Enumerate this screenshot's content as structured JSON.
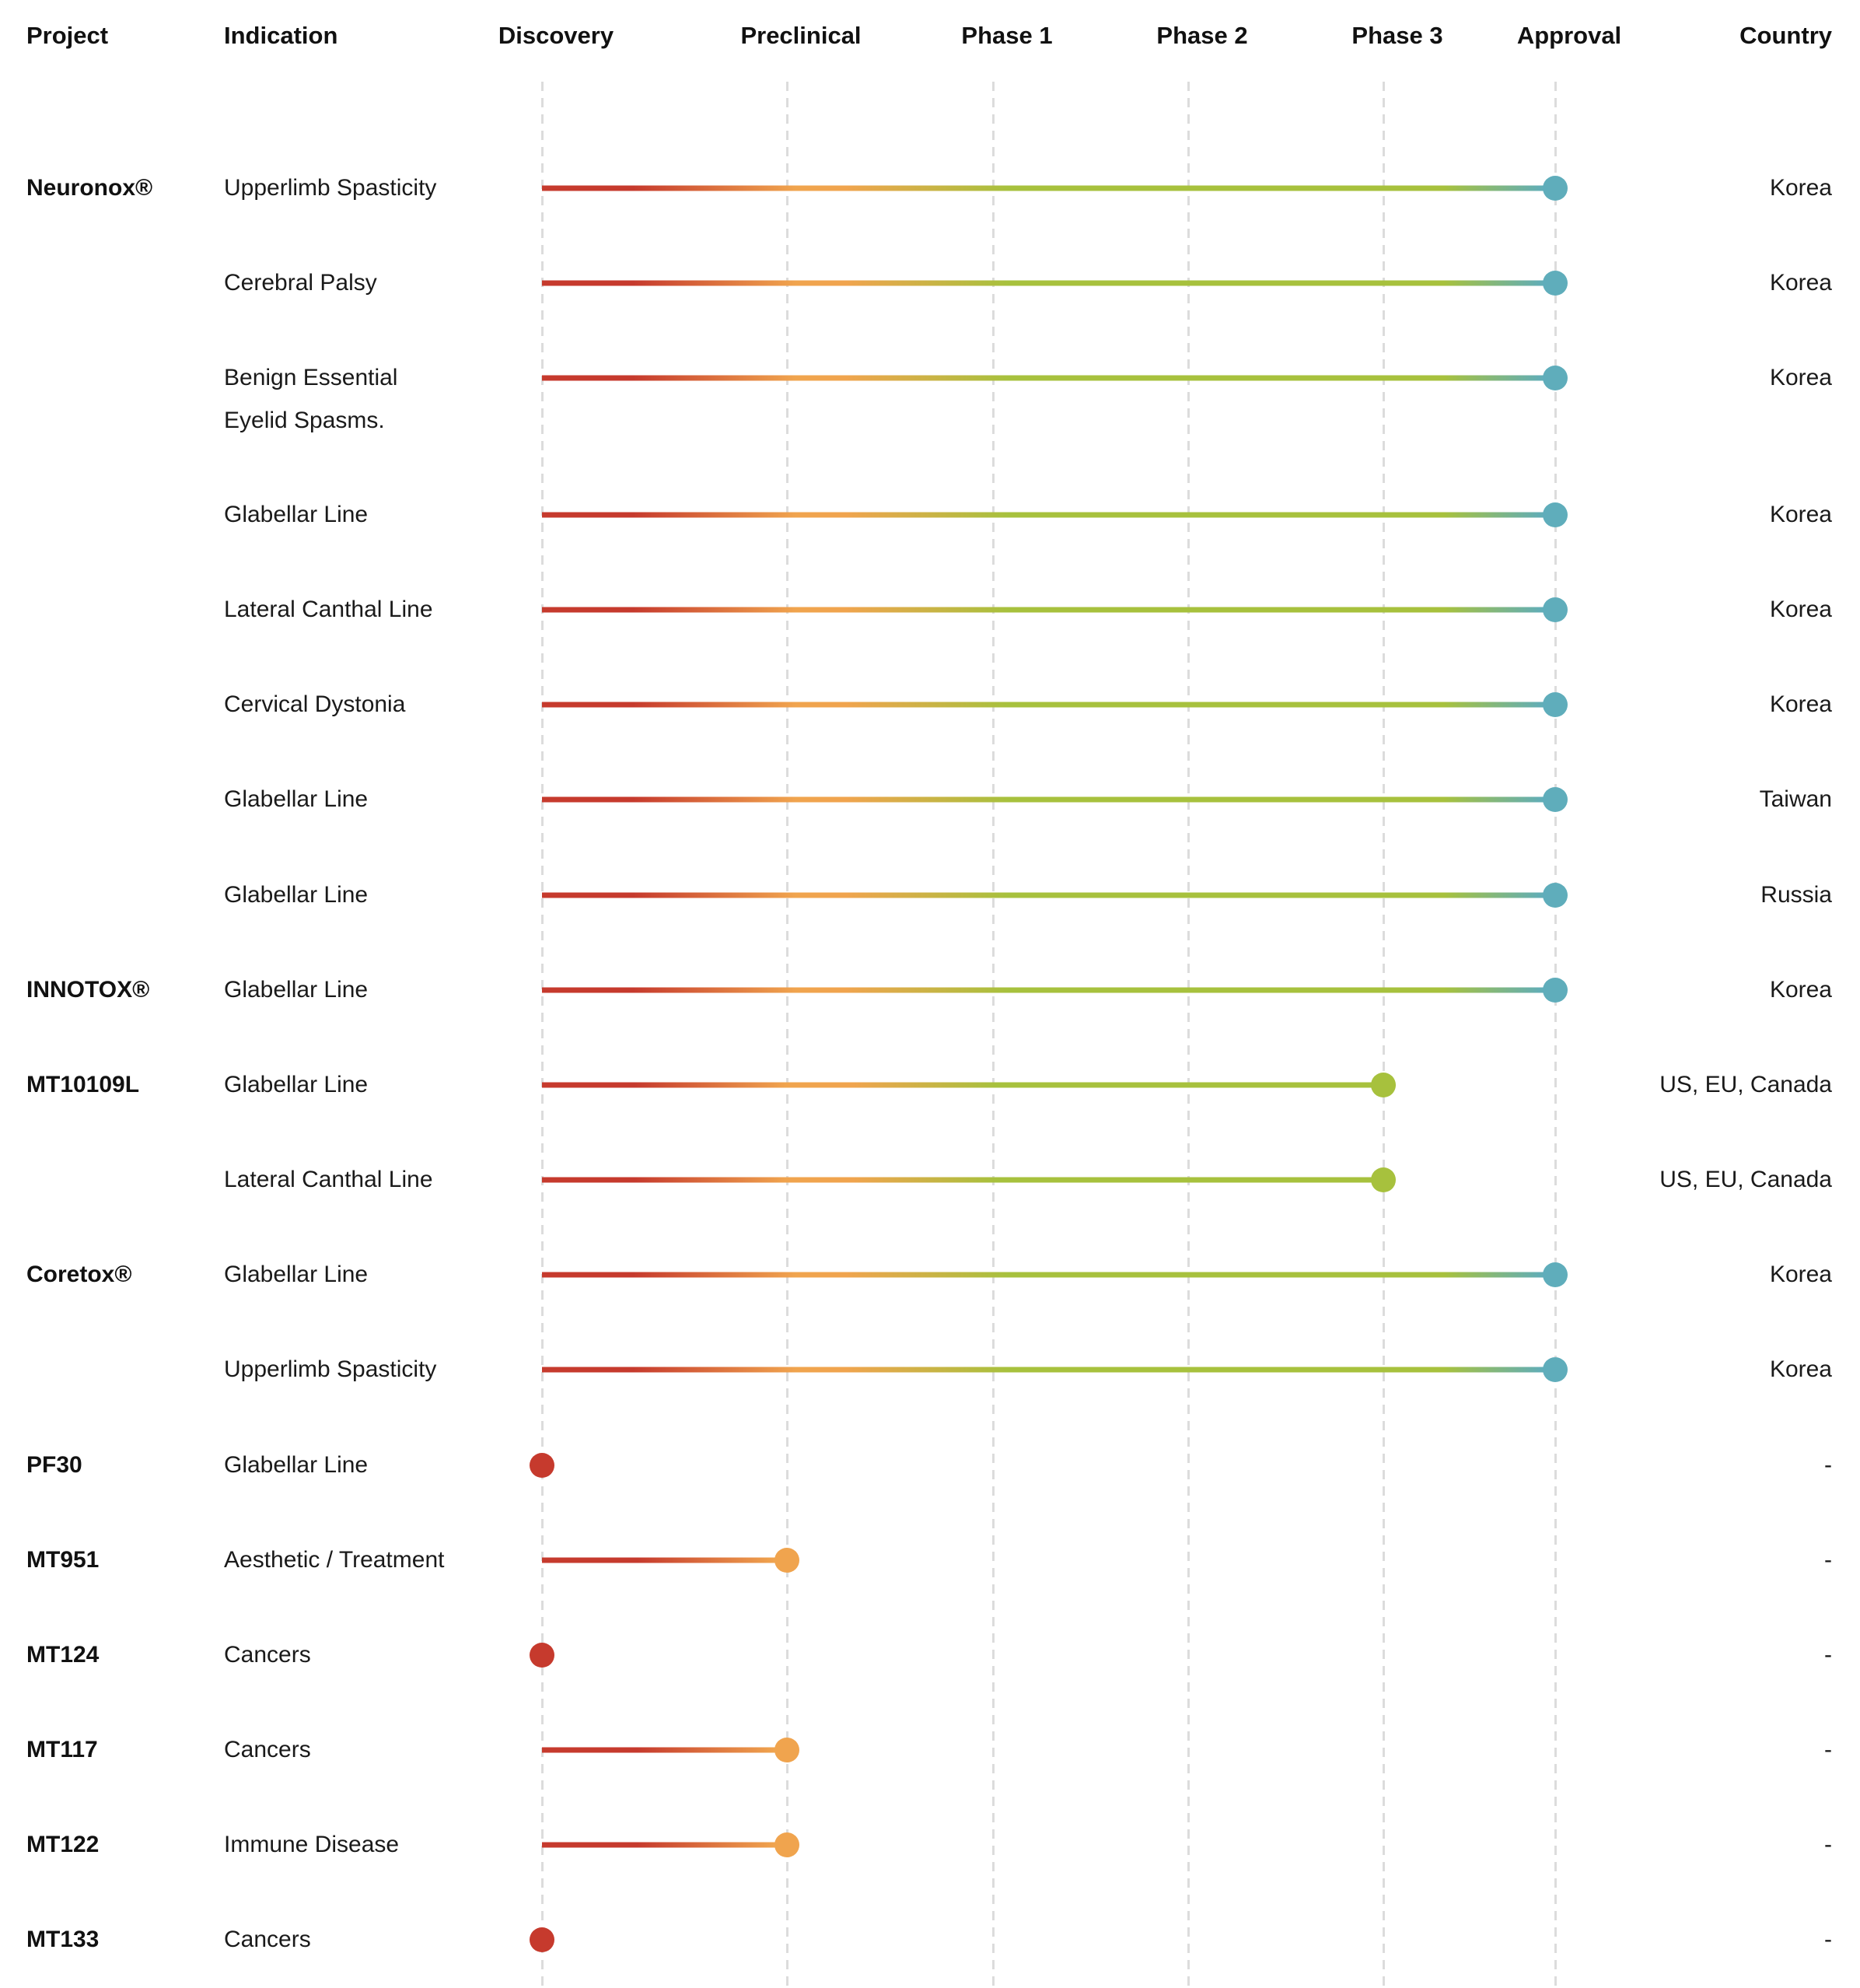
{
  "columns": [
    {
      "label": "Project"
    },
    {
      "label": "Indication"
    },
    {
      "label": "Discovery"
    },
    {
      "label": "Preclinical"
    },
    {
      "label": "Phase 1"
    },
    {
      "label": "Phase 2"
    },
    {
      "label": "Phase 3"
    },
    {
      "label": "Approval"
    },
    {
      "label": "Country"
    }
  ],
  "colors": {
    "discovery_red": "#c63a2d",
    "preclinical_orange": "#f0a44e",
    "phase_green": "#a7c13d",
    "approval_teal": "#5fadbb",
    "gridline_gray": "#dcdcdc",
    "text": "#1a1a1a"
  },
  "rows": [
    {
      "project": "Neuronox®",
      "indication": "Upperlimb Spasticity",
      "indication_line2": "",
      "stage_reached": "Approval",
      "country": "Korea"
    },
    {
      "project": "",
      "indication": "Cerebral Palsy",
      "indication_line2": "",
      "stage_reached": "Approval",
      "country": "Korea"
    },
    {
      "project": "",
      "indication": "Benign Essential",
      "indication_line2": "Eyelid Spasms.",
      "stage_reached": "Approval",
      "country": "Korea"
    },
    {
      "project": "",
      "indication": "Glabellar Line",
      "indication_line2": "",
      "stage_reached": "Approval",
      "country": "Korea"
    },
    {
      "project": "",
      "indication": "Lateral Canthal Line",
      "indication_line2": "",
      "stage_reached": "Approval",
      "country": "Korea"
    },
    {
      "project": "",
      "indication": "Cervical Dystonia",
      "indication_line2": "",
      "stage_reached": "Approval",
      "country": "Korea"
    },
    {
      "project": "",
      "indication": "Glabellar Line",
      "indication_line2": "",
      "stage_reached": "Approval",
      "country": "Taiwan"
    },
    {
      "project": "",
      "indication": "Glabellar Line",
      "indication_line2": "",
      "stage_reached": "Approval",
      "country": "Russia"
    },
    {
      "project": "INNOTOX®",
      "indication": "Glabellar Line",
      "indication_line2": "",
      "stage_reached": "Approval",
      "country": "Korea"
    },
    {
      "project": "MT10109L",
      "indication": "Glabellar Line",
      "indication_line2": "",
      "stage_reached": "Phase 3",
      "country": "US, EU, Canada"
    },
    {
      "project": "",
      "indication": "Lateral Canthal Line",
      "indication_line2": "",
      "stage_reached": "Phase 3",
      "country": "US, EU, Canada"
    },
    {
      "project": "Coretox®",
      "indication": "Glabellar Line",
      "indication_line2": "",
      "stage_reached": "Approval",
      "country": "Korea"
    },
    {
      "project": "",
      "indication": "Upperlimb Spasticity",
      "indication_line2": "",
      "stage_reached": "Approval",
      "country": "Korea"
    },
    {
      "project": "PF30",
      "indication": "Glabellar Line",
      "indication_line2": "",
      "stage_reached": "Discovery",
      "country": "-"
    },
    {
      "project": "MT951",
      "indication": "Aesthetic / Treatment",
      "indication_line2": "",
      "stage_reached": "Preclinical",
      "country": "-"
    },
    {
      "project": "MT124",
      "indication": "Cancers",
      "indication_line2": "",
      "stage_reached": "Discovery",
      "country": "-"
    },
    {
      "project": "MT117",
      "indication": "Cancers",
      "indication_line2": "",
      "stage_reached": "Preclinical",
      "country": "-"
    },
    {
      "project": "MT122",
      "indication": "Immune Disease",
      "indication_line2": "",
      "stage_reached": "Preclinical",
      "country": "-"
    },
    {
      "project": "MT133",
      "indication": "Cancers",
      "indication_line2": "",
      "stage_reached": "Discovery",
      "country": "-"
    }
  ],
  "chart_data": {
    "type": "gantt",
    "title": "",
    "stages": [
      "Discovery",
      "Preclinical",
      "Phase 1",
      "Phase 2",
      "Phase 3",
      "Approval"
    ],
    "legend_position": "none",
    "grid": "vertical-dashed",
    "series": [
      {
        "project": "Neuronox®",
        "indication": "Upperlimb Spasticity",
        "from": "Discovery",
        "to": "Approval",
        "country": "Korea"
      },
      {
        "project": "Neuronox®",
        "indication": "Cerebral Palsy",
        "from": "Discovery",
        "to": "Approval",
        "country": "Korea"
      },
      {
        "project": "Neuronox®",
        "indication": "Benign Essential Eyelid Spasms.",
        "from": "Discovery",
        "to": "Approval",
        "country": "Korea"
      },
      {
        "project": "Neuronox®",
        "indication": "Glabellar Line",
        "from": "Discovery",
        "to": "Approval",
        "country": "Korea"
      },
      {
        "project": "Neuronox®",
        "indication": "Lateral Canthal Line",
        "from": "Discovery",
        "to": "Approval",
        "country": "Korea"
      },
      {
        "project": "Neuronox®",
        "indication": "Cervical Dystonia",
        "from": "Discovery",
        "to": "Approval",
        "country": "Korea"
      },
      {
        "project": "Neuronox®",
        "indication": "Glabellar Line",
        "from": "Discovery",
        "to": "Approval",
        "country": "Taiwan"
      },
      {
        "project": "Neuronox®",
        "indication": "Glabellar Line",
        "from": "Discovery",
        "to": "Approval",
        "country": "Russia"
      },
      {
        "project": "INNOTOX®",
        "indication": "Glabellar Line",
        "from": "Discovery",
        "to": "Approval",
        "country": "Korea"
      },
      {
        "project": "MT10109L",
        "indication": "Glabellar Line",
        "from": "Discovery",
        "to": "Phase 3",
        "country": "US, EU, Canada"
      },
      {
        "project": "MT10109L",
        "indication": "Lateral Canthal Line",
        "from": "Discovery",
        "to": "Phase 3",
        "country": "US, EU, Canada"
      },
      {
        "project": "Coretox®",
        "indication": "Glabellar Line",
        "from": "Discovery",
        "to": "Approval",
        "country": "Korea"
      },
      {
        "project": "Coretox®",
        "indication": "Upperlimb Spasticity",
        "from": "Discovery",
        "to": "Approval",
        "country": "Korea"
      },
      {
        "project": "PF30",
        "indication": "Glabellar Line",
        "from": "Discovery",
        "to": "Discovery",
        "country": "-"
      },
      {
        "project": "MT951",
        "indication": "Aesthetic / Treatment",
        "from": "Discovery",
        "to": "Preclinical",
        "country": "-"
      },
      {
        "project": "MT124",
        "indication": "Cancers",
        "from": "Discovery",
        "to": "Discovery",
        "country": "-"
      },
      {
        "project": "MT117",
        "indication": "Cancers",
        "from": "Discovery",
        "to": "Preclinical",
        "country": "-"
      },
      {
        "project": "MT122",
        "indication": "Immune Disease",
        "from": "Discovery",
        "to": "Preclinical",
        "country": "-"
      },
      {
        "project": "MT133",
        "indication": "Cancers",
        "from": "Discovery",
        "to": "Discovery",
        "country": "-"
      }
    ]
  }
}
